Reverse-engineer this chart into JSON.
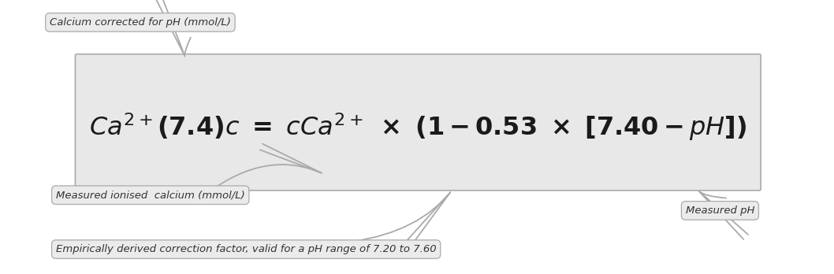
{
  "box_bg": "#e8e8e8",
  "box_edge": "#aaaaaa",
  "label_bg": "#ebebeb",
  "label_edge": "#aaaaaa",
  "label1_text": "Calcium corrected for pH (mmol/L)",
  "label2_text": "Measured ionised  calcium (mmol/L)",
  "label3_text": "Empirically derived correction factor, valid for a pH range of 7.20 to 7.60",
  "label4_text": "Measured pH",
  "fig_bg": "#ffffff",
  "font_color": "#333333",
  "arrow_color": "#aaaaaa"
}
